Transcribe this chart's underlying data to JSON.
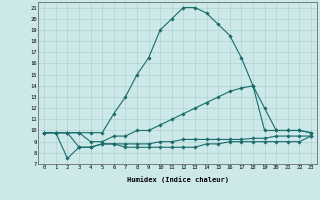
{
  "xlabel": "Humidex (Indice chaleur)",
  "xlim": [
    -0.5,
    23.5
  ],
  "ylim": [
    7,
    21.5
  ],
  "xticks": [
    0,
    1,
    2,
    3,
    4,
    5,
    6,
    7,
    8,
    9,
    10,
    11,
    12,
    13,
    14,
    15,
    16,
    17,
    18,
    19,
    20,
    21,
    22,
    23
  ],
  "yticks": [
    7,
    8,
    9,
    10,
    11,
    12,
    13,
    14,
    15,
    16,
    17,
    18,
    19,
    20,
    21
  ],
  "bg_color": "#cce8e8",
  "line_color": "#1a6b6b",
  "grid_color": "#aacccc",
  "lines": [
    {
      "x": [
        0,
        1,
        2,
        3,
        4,
        5,
        6,
        7,
        8,
        9,
        10,
        11,
        12,
        13,
        14,
        15,
        16,
        17,
        18,
        19,
        20,
        21,
        22,
        23
      ],
      "y": [
        9.8,
        9.8,
        9.8,
        9.8,
        9.8,
        9.8,
        11.5,
        13.0,
        15.0,
        16.5,
        19.0,
        20.0,
        21.0,
        21.0,
        20.5,
        19.5,
        18.5,
        16.5,
        14.0,
        10.0,
        10.0,
        10.0,
        10.0,
        9.8
      ]
    },
    {
      "x": [
        0,
        1,
        2,
        3,
        4,
        5,
        6,
        7,
        8,
        9,
        10,
        11,
        12,
        13,
        14,
        15,
        16,
        17,
        18,
        19,
        20,
        21,
        22,
        23
      ],
      "y": [
        9.8,
        9.8,
        9.8,
        9.8,
        9.0,
        9.0,
        9.5,
        9.5,
        10.0,
        10.0,
        10.5,
        11.0,
        11.5,
        12.0,
        12.5,
        13.0,
        13.5,
        13.8,
        14.0,
        12.0,
        10.0,
        10.0,
        10.0,
        9.8
      ]
    },
    {
      "x": [
        0,
        1,
        2,
        3,
        4,
        5,
        6,
        7,
        8,
        9,
        10,
        11,
        12,
        13,
        14,
        15,
        16,
        17,
        18,
        19,
        20,
        21,
        22,
        23
      ],
      "y": [
        9.8,
        9.8,
        7.5,
        8.5,
        8.5,
        8.8,
        8.8,
        8.8,
        8.8,
        8.8,
        9.0,
        9.0,
        9.2,
        9.2,
        9.2,
        9.2,
        9.2,
        9.2,
        9.3,
        9.3,
        9.5,
        9.5,
        9.5,
        9.5
      ]
    },
    {
      "x": [
        0,
        1,
        2,
        3,
        4,
        5,
        6,
        7,
        8,
        9,
        10,
        11,
        12,
        13,
        14,
        15,
        16,
        17,
        18,
        19,
        20,
        21,
        22,
        23
      ],
      "y": [
        9.8,
        9.8,
        9.8,
        8.5,
        8.5,
        8.8,
        8.8,
        8.5,
        8.5,
        8.5,
        8.5,
        8.5,
        8.5,
        8.5,
        8.8,
        8.8,
        9.0,
        9.0,
        9.0,
        9.0,
        9.0,
        9.0,
        9.0,
        9.5
      ]
    }
  ]
}
